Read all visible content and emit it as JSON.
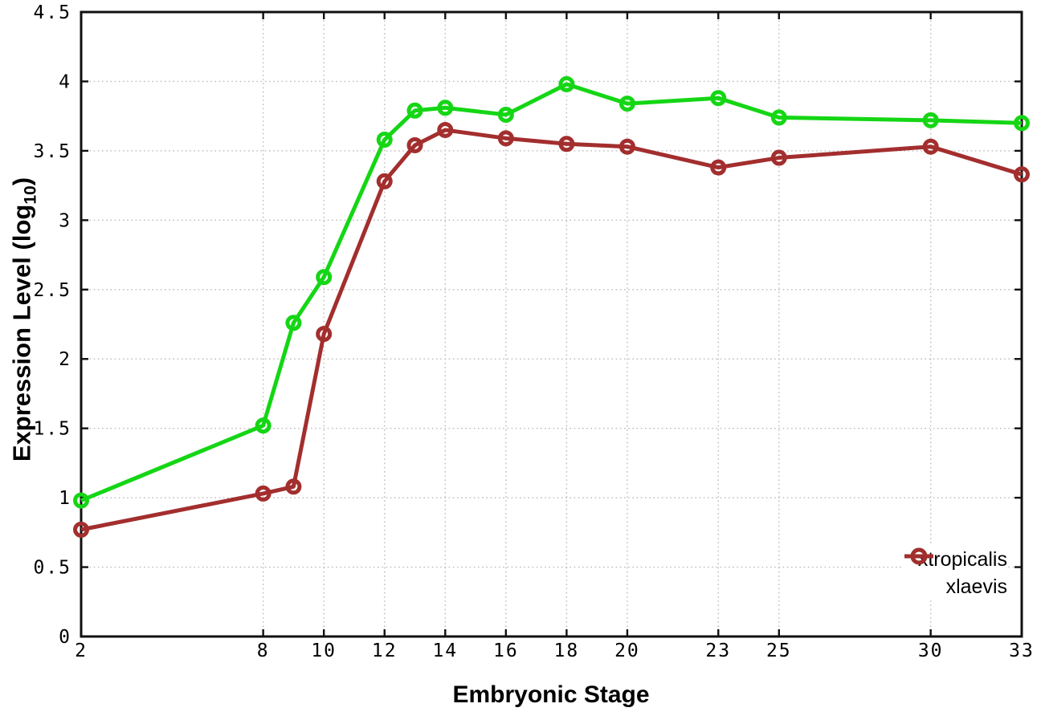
{
  "figure": {
    "xlabel": "Embryonic Stage",
    "ylabel_prefix": "Expression Level (log",
    "ylabel_sub": "10",
    "ylabel_suffix": ")"
  },
  "chart_data": {
    "type": "line",
    "title": "",
    "xlabel": "Embryonic Stage",
    "ylabel": "Expression Level (log10)",
    "x": [
      2,
      8,
      9,
      10,
      12,
      13,
      14,
      16,
      18,
      20,
      23,
      25,
      30,
      33
    ],
    "xticks": [
      2,
      8,
      10,
      12,
      14,
      16,
      18,
      20,
      23,
      25,
      30,
      33
    ],
    "yticks": [
      0,
      0.5,
      1,
      1.5,
      2,
      2.5,
      3,
      3.5,
      4,
      4.5
    ],
    "xlim": [
      2,
      33
    ],
    "ylim": [
      0,
      4.5
    ],
    "grid": true,
    "legend_position": "inside-bottom-right",
    "series": [
      {
        "name": "xtropicalis",
        "color": "#15d615",
        "marker": "open-circle",
        "values": [
          0.98,
          1.52,
          2.26,
          2.59,
          3.58,
          3.79,
          3.81,
          3.76,
          3.98,
          3.84,
          3.88,
          3.74,
          3.72,
          3.7
        ]
      },
      {
        "name": "xlaevis",
        "color": "#a32e2e",
        "marker": "open-circle",
        "values": [
          0.77,
          1.03,
          1.08,
          2.18,
          3.28,
          3.54,
          3.65,
          3.59,
          3.55,
          3.53,
          3.38,
          3.45,
          3.53,
          3.33
        ]
      }
    ]
  },
  "style": {
    "background": "#ffffff",
    "grid_color": "#bbbbbb",
    "axis_color": "#101010",
    "text_color": "#000000"
  }
}
